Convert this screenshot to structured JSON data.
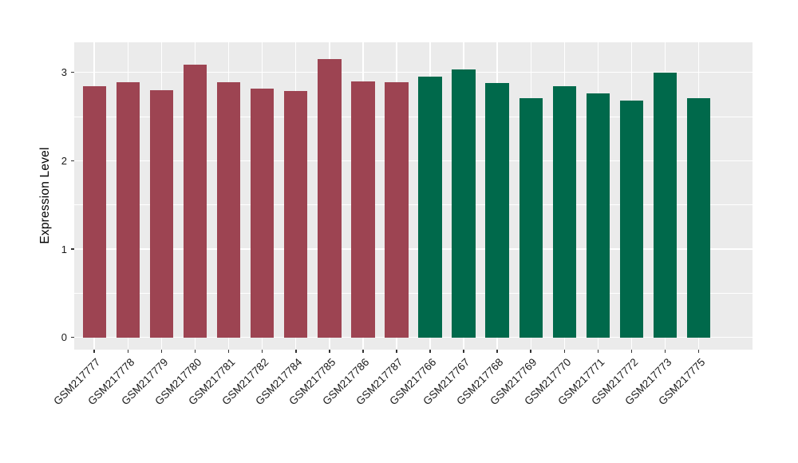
{
  "chart_data": {
    "type": "bar",
    "title": "",
    "xlabel": "",
    "ylabel": "Expression Level",
    "categories": [
      "GSM217777",
      "GSM217778",
      "GSM217779",
      "GSM217780",
      "GSM217781",
      "GSM217782",
      "GSM217784",
      "GSM217785",
      "GSM217786",
      "GSM217787",
      "GSM217766",
      "GSM217767",
      "GSM217768",
      "GSM217769",
      "GSM217770",
      "GSM217771",
      "GSM217772",
      "GSM217773",
      "GSM217775"
    ],
    "values": [
      2.84,
      2.89,
      2.8,
      3.09,
      2.89,
      2.82,
      2.79,
      3.15,
      2.9,
      2.89,
      2.95,
      3.03,
      2.88,
      2.71,
      2.84,
      2.76,
      2.68,
      3.0,
      2.71
    ],
    "groups": [
      "maroon",
      "maroon",
      "maroon",
      "maroon",
      "maroon",
      "maroon",
      "maroon",
      "maroon",
      "maroon",
      "maroon",
      "green",
      "green",
      "green",
      "green",
      "green",
      "green",
      "green",
      "green",
      "green"
    ],
    "group_colors": {
      "maroon": "#9D4452",
      "green": "#00694B"
    },
    "yticks": [
      0,
      1,
      2,
      3
    ],
    "yticks_minor": [
      0.5,
      1.5,
      2.5
    ],
    "ylim": [
      -0.14,
      3.34
    ],
    "bar_width_fraction": 0.7,
    "grid": true,
    "legend": "none",
    "panel_bg": "#EBEBEB",
    "grid_color": "#FFFFFF",
    "tick_color": "#333333",
    "axis_text_color": "#1A1A1A"
  }
}
